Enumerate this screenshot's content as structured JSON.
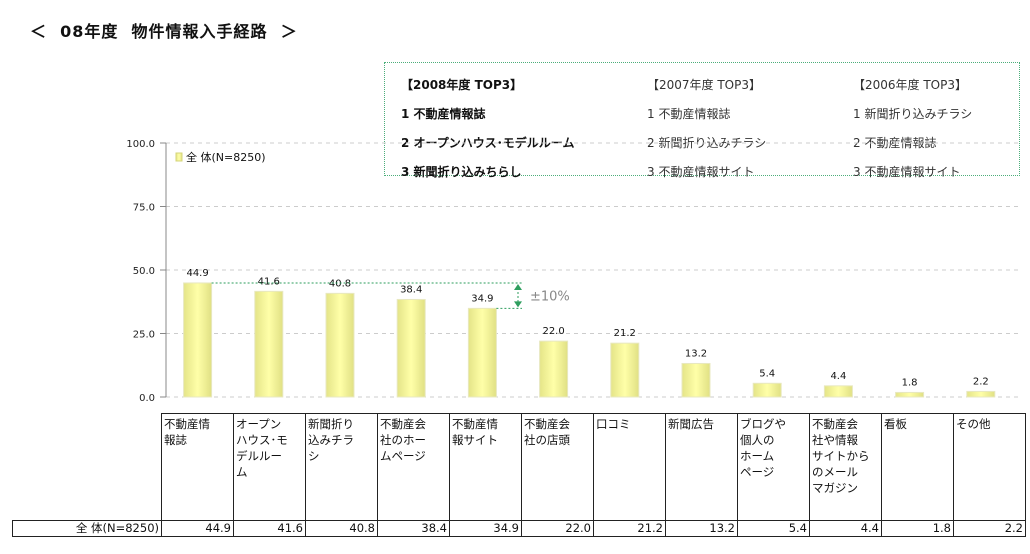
{
  "title": "＜  08年度  物件情報入手経路  ＞",
  "top3": {
    "y2008": {
      "header": "【2008年度  TOP3】",
      "items": [
        "1  不動産情報誌",
        "2  オープンハウス･モデルルーム",
        "3  新聞折り込みちらし"
      ]
    },
    "y2007": {
      "header": "【2007年度  TOP3】",
      "items": [
        "1  不動産情報誌",
        "2  新聞折り込みチラシ",
        "3  不動産情報サイト"
      ]
    },
    "y2006": {
      "header": "【2006年度  TOP3】",
      "items": [
        "1  新聞折り込みチラシ",
        "2  不動産情報誌",
        "3  不動産情報サイト"
      ]
    }
  },
  "chart_data": {
    "type": "bar",
    "categories": [
      "不動産情報誌",
      "オープンハウス･モデルルーム",
      "新聞折り込みチラシ",
      "不動産会社のホームページ",
      "不動産情報サイト",
      "不動産会社の店頭",
      "口コミ",
      "新聞広告",
      "ブログや個人のホームページ",
      "不動産会社や情報サイトからのメールマガジン",
      "看板",
      "その他"
    ],
    "category_lines": [
      [
        "不動産情",
        "報誌"
      ],
      [
        "オープン",
        "ハウス･モ",
        "デルルー",
        "ム"
      ],
      [
        "新聞折り",
        "込みチラ",
        "シ"
      ],
      [
        "不動産会",
        "社のホー",
        "ムページ"
      ],
      [
        "不動産情",
        "報サイト"
      ],
      [
        "不動産会",
        "社の店頭"
      ],
      [
        "口コミ"
      ],
      [
        "新聞広告"
      ],
      [
        "ブログや",
        "個人の",
        "ホーム",
        "ページ"
      ],
      [
        "不動産会",
        "社や情報",
        "サイトから",
        "のメール",
        "マガジン"
      ],
      [
        "看板"
      ],
      [
        "その他"
      ]
    ],
    "series": [
      {
        "name": "全  体(N=8250)",
        "values": [
          44.9,
          41.6,
          40.8,
          38.4,
          34.9,
          22.0,
          21.2,
          13.2,
          5.4,
          4.4,
          1.8,
          2.2
        ]
      }
    ],
    "value_labels": [
      "44.9",
      "41.6",
      "40.8",
      "38.4",
      "34.9",
      "22.0",
      "21.2",
      "13.2",
      "5.4",
      "4.4",
      "1.8",
      "2.2"
    ],
    "yticks": [
      "0.0",
      "25.0",
      "50.0",
      "75.0",
      "100.0"
    ],
    "ylim": [
      0,
      100
    ],
    "grid": true,
    "legend_position": "top-left",
    "annotation": "±10%",
    "colors": {
      "bar": "#f4f49a",
      "bar_edge": "#d4d47a",
      "annotation": "#2e9e5e"
    }
  },
  "table": {
    "row_label": "全  体(N=8250)"
  }
}
